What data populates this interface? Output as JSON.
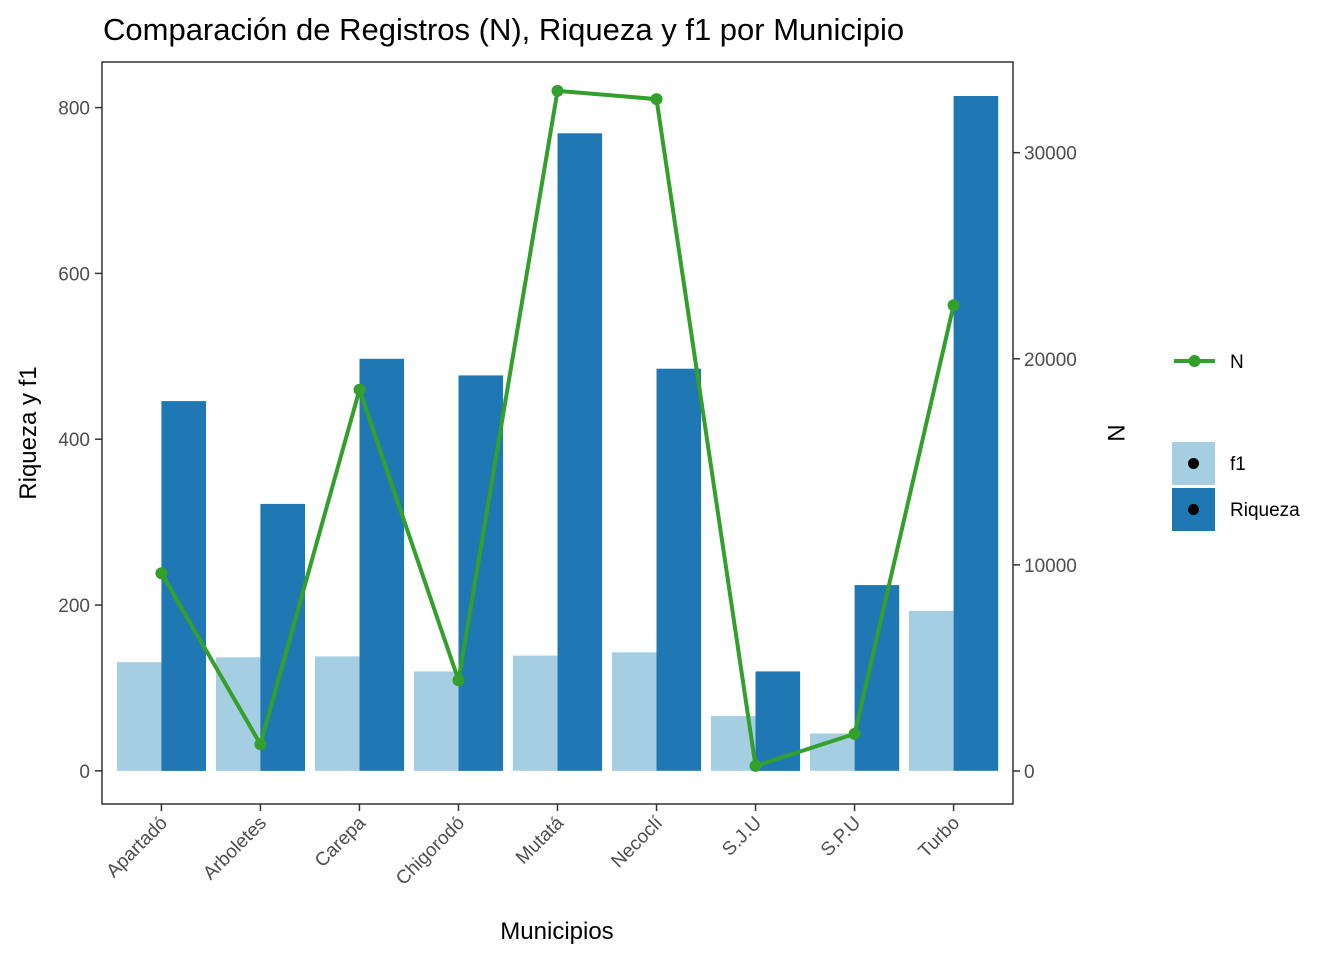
{
  "chart_data": {
    "type": "bar",
    "title": "Comparación de Registros (N), Riqueza y f1 por Municipio",
    "xlabel": "Municipios",
    "ylabel": "Riqueza y f1",
    "y2label": "N",
    "categories": [
      "Apartadó",
      "Arboletes",
      "Carepa",
      "Chigorodó",
      "Mutatá",
      "Necoclí",
      "S.J.U",
      "S.P.U",
      "Turbo"
    ],
    "ylim": [
      -40,
      855
    ],
    "y_ticks": [
      0,
      200,
      400,
      600,
      800
    ],
    "y2lim": [
      -1600,
      34400
    ],
    "y2_ticks": [
      0,
      10000,
      20000,
      30000
    ],
    "series": [
      {
        "name": "f1",
        "type": "bar",
        "color": "#a6cee3",
        "values": [
          131,
          137,
          138,
          120,
          139,
          143,
          66,
          45,
          193
        ]
      },
      {
        "name": "Riqueza",
        "type": "bar",
        "color": "#1f78b4",
        "values": [
          446,
          322,
          497,
          477,
          769,
          485,
          120,
          224,
          814
        ]
      },
      {
        "name": "N",
        "type": "line",
        "axis": "right",
        "color": "#33a02c",
        "values": [
          9600,
          1300,
          18500,
          4400,
          33000,
          32600,
          250,
          1800,
          22600
        ]
      }
    ],
    "grid": false,
    "legend_position": "right"
  }
}
